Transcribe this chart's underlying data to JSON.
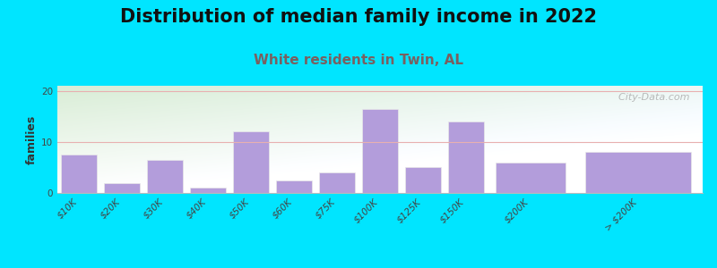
{
  "title": "Distribution of median family income in 2022",
  "subtitle": "White residents in Twin, AL",
  "ylabel": "families",
  "categories": [
    "$10K",
    "$20K",
    "$30K",
    "$40K",
    "$50K",
    "$60K",
    "$75K",
    "$100K",
    "$125K",
    "$150K",
    "$200K",
    "> $200K"
  ],
  "values": [
    7.5,
    2,
    6.5,
    1,
    12,
    2.5,
    4,
    16.5,
    5,
    14,
    6,
    8
  ],
  "bar_widths": [
    1,
    1,
    1,
    1,
    1,
    1,
    1,
    1,
    1,
    1,
    2,
    3
  ],
  "bar_color": "#b39ddb",
  "bar_edge_color": "#e8e8e8",
  "background_color": "#00e5ff",
  "plot_bg_color_topleft": "#d8ecd0",
  "plot_bg_color_right": "#f0ede8",
  "plot_bg_color_bottom": "#ffffff",
  "title_fontsize": 15,
  "subtitle_fontsize": 11,
  "subtitle_color": "#7a6060",
  "ylabel_fontsize": 9,
  "tick_fontsize": 7.5,
  "ylim": [
    0,
    21
  ],
  "yticks": [
    0,
    10,
    20
  ],
  "grid_color": "#e8b0b0",
  "watermark": "  City-Data.com",
  "watermark_color": "#aaaaaa"
}
